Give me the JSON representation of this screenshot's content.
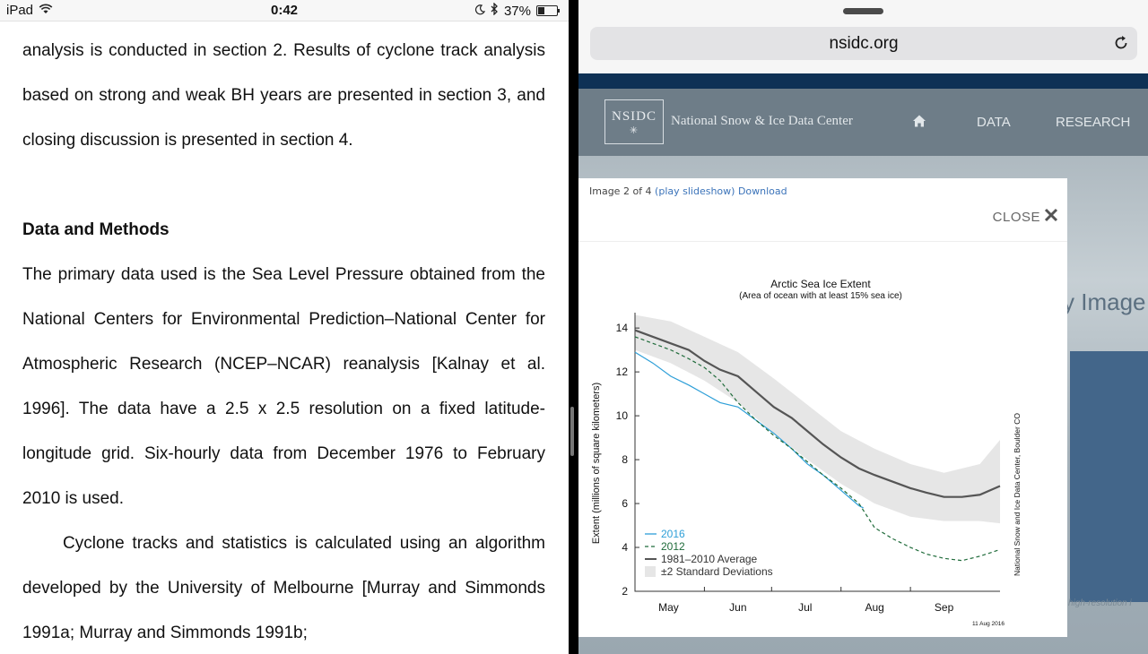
{
  "status_bar": {
    "device": "iPad",
    "time": "0:42",
    "battery": "37%",
    "battery_level": 0.37,
    "icons": [
      "wifi-icon",
      "moon-icon",
      "bluetooth-icon",
      "battery-icon"
    ]
  },
  "document": {
    "p1": "analysis is conducted in section 2. Results of cyclone track analysis based on strong and weak BH years are presented in section 3, and closing discussion is presented in section 4.",
    "heading": "Data and Methods",
    "p2": "The primary data used is the Sea Level Pressure obtained from the National Centers for Environmental Prediction–National Center for Atmospheric Research (NCEP–NCAR) reanalysis [Kalnay et al. 1996]. The data have a 2.5 x 2.5 resolution on a fixed latitude-longitude grid. Six-hourly data from December 1976 to February 2010 is used.",
    "p3": "Cyclone tracks and statistics is calculated using an algorithm developed by the University of Melbourne [Murray and Simmonds 1991a; Murray and Simmonds 1991b;"
  },
  "browser": {
    "url": "nsidc.org"
  },
  "site": {
    "logo_text": "NSIDC",
    "name": "National Snow & Ice Data Center",
    "nav": [
      "DATA",
      "RESEARCH"
    ],
    "bg_snippet": "y Image U",
    "bg_caption": "high-resolution i"
  },
  "lightbox": {
    "counter": "Image 2 of 4",
    "slideshow_link": "(play slideshow)",
    "download_link": "Download",
    "close_label": "CLOSE"
  },
  "colors": {
    "series_2016": "#2e9fd8",
    "series_2012": "#1f6b3a",
    "average": "#555555",
    "std_band": "#e6e6e6"
  },
  "chart_data": {
    "type": "line",
    "title": "Arctic Sea Ice Extent",
    "subtitle": "(Area of ocean with at least 15% sea ice)",
    "ylabel": "Extent (millions of square kilometers)",
    "xlabel": "",
    "ylim": [
      2,
      14.7
    ],
    "y_ticks": [
      2,
      4,
      6,
      8,
      10,
      12,
      14
    ],
    "x_range_days": [
      0,
      163
    ],
    "x_ticks": [
      {
        "label": "May",
        "day": 15
      },
      {
        "label": "Jun",
        "day": 46
      },
      {
        "label": "Jul",
        "day": 76
      },
      {
        "label": "Aug",
        "day": 107
      },
      {
        "label": "Sep",
        "day": 138
      }
    ],
    "legend": [
      "2016",
      "2012",
      "1981–2010 Average",
      "±2 Standard Deviations"
    ],
    "legend_placement": "bottom-left",
    "credit": "National Snow and Ice Data Center, Boulder CO",
    "date_stamp": "11 Aug 2016",
    "series": [
      {
        "name": "2016",
        "style": "solid",
        "x": [
          0,
          8,
          16,
          24,
          31,
          38,
          46,
          54,
          62,
          70,
          77,
          84,
          92,
          100,
          102
        ],
        "y": [
          12.9,
          12.4,
          11.8,
          11.4,
          11.0,
          10.6,
          10.4,
          9.8,
          9.2,
          8.5,
          7.8,
          7.3,
          6.6,
          5.9,
          5.8
        ]
      },
      {
        "name": "2012",
        "style": "dashed",
        "x": [
          0,
          8,
          16,
          24,
          31,
          38,
          46,
          54,
          62,
          70,
          77,
          84,
          92,
          100,
          107,
          115,
          123,
          130,
          138,
          146,
          154,
          163
        ],
        "y": [
          13.6,
          13.3,
          13.0,
          12.6,
          12.2,
          11.6,
          10.6,
          9.8,
          9.1,
          8.5,
          7.9,
          7.3,
          6.7,
          6.0,
          4.9,
          4.4,
          4.0,
          3.7,
          3.5,
          3.4,
          3.6,
          3.9
        ]
      },
      {
        "name": "1981–2010 Average",
        "style": "solid",
        "x": [
          0,
          8,
          16,
          24,
          31,
          38,
          46,
          54,
          62,
          70,
          77,
          84,
          92,
          100,
          107,
          115,
          123,
          130,
          138,
          146,
          154,
          163
        ],
        "y": [
          13.9,
          13.6,
          13.3,
          13.0,
          12.5,
          12.1,
          11.8,
          11.1,
          10.4,
          9.9,
          9.3,
          8.7,
          8.1,
          7.6,
          7.3,
          7.0,
          6.7,
          6.5,
          6.3,
          6.3,
          6.4,
          6.8
        ]
      }
    ],
    "band": {
      "x": [
        0,
        16,
        31,
        46,
        62,
        77,
        92,
        107,
        123,
        138,
        154,
        163
      ],
      "upper": [
        14.6,
        14.3,
        13.6,
        12.9,
        11.7,
        10.5,
        9.3,
        8.5,
        7.8,
        7.4,
        7.8,
        8.9
      ],
      "lower": [
        13.0,
        12.4,
        11.6,
        10.6,
        9.2,
        8.0,
        6.9,
        6.0,
        5.4,
        5.2,
        5.2,
        5.1
      ]
    }
  }
}
